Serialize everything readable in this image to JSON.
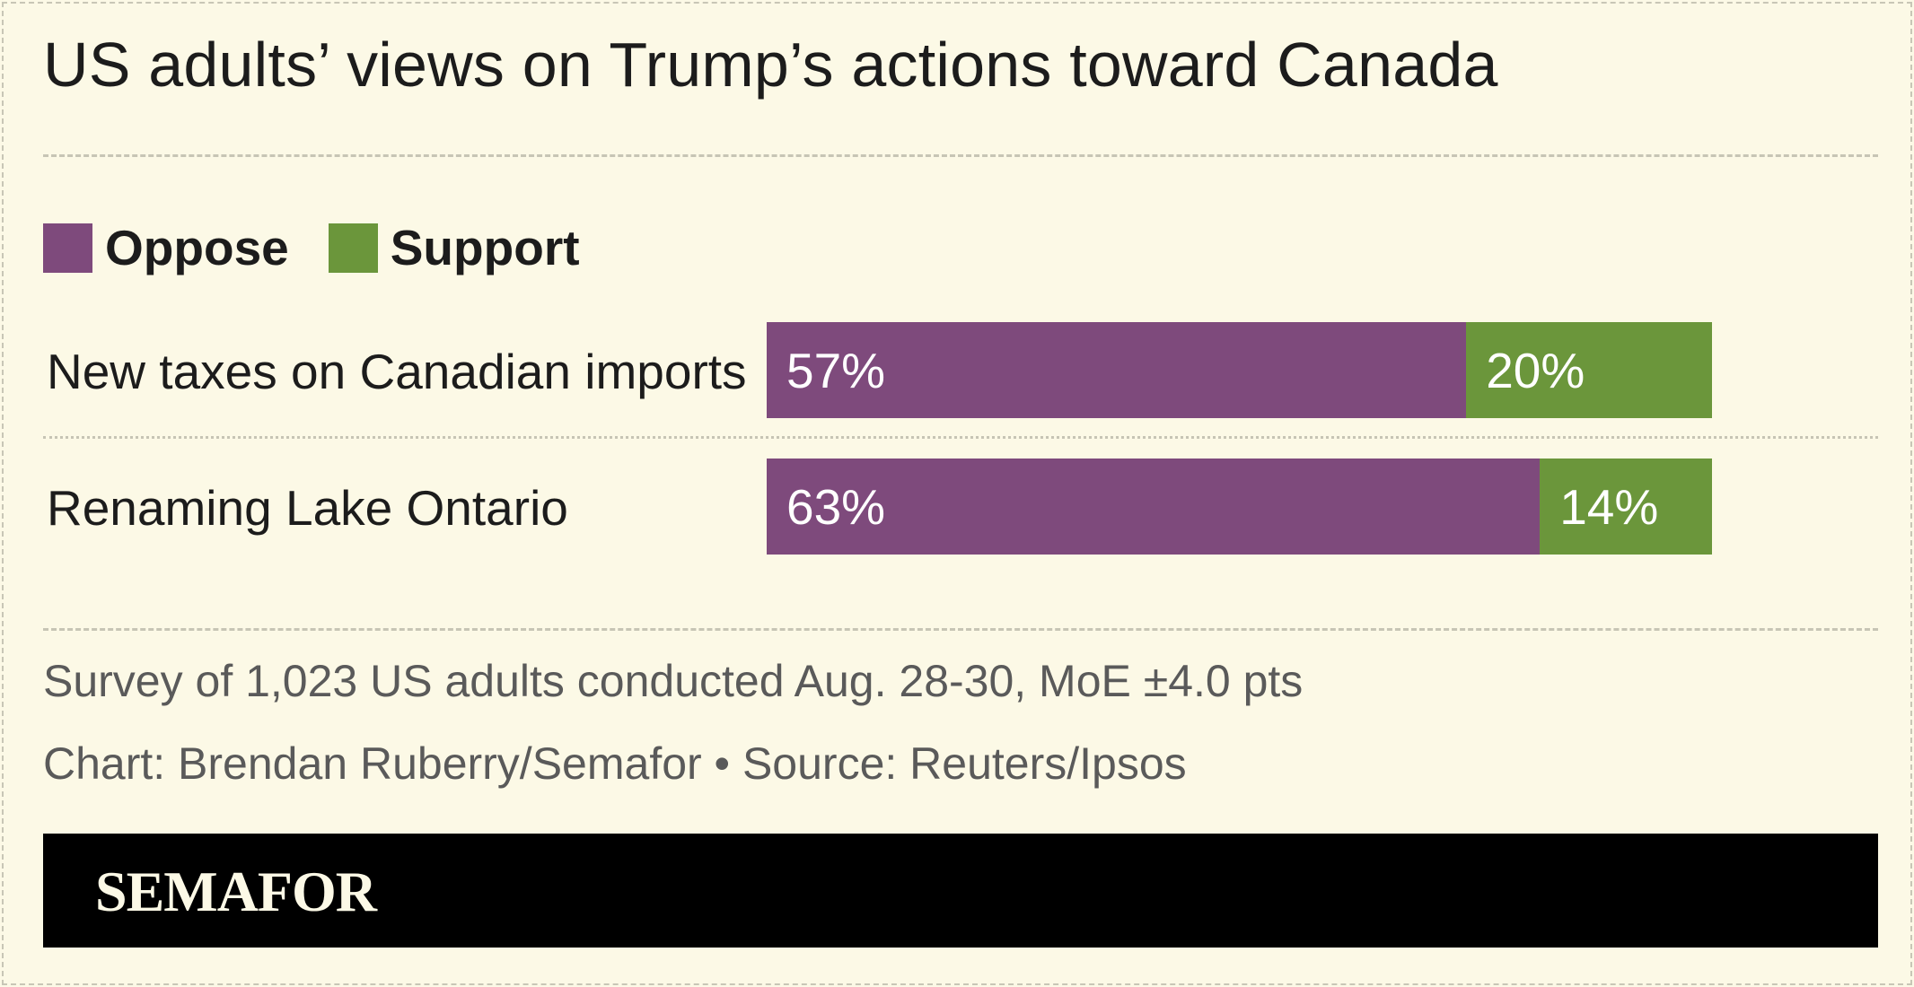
{
  "title": "US adults’ views on Trump’s actions toward Canada",
  "colors": {
    "oppose": "#7e4a7c",
    "support": "#6b963b",
    "background": "#fcf9e6"
  },
  "chart_data": {
    "type": "bar",
    "orientation": "horizontal",
    "stacked": true,
    "categories": [
      "New taxes on Canadian imports",
      "Renaming Lake Ontario"
    ],
    "series": [
      {
        "name": "Oppose",
        "values": [
          57,
          63
        ],
        "labels": [
          "57%",
          "63%"
        ]
      },
      {
        "name": "Support",
        "values": [
          20,
          14
        ],
        "labels": [
          "20%",
          "14%"
        ]
      }
    ],
    "xlim": [
      0,
      100
    ],
    "legend": "top-left",
    "grid": false
  },
  "notes": {
    "survey": "Survey of 1,023 US adults conducted Aug. 28-30, MoE ±4.0 pts",
    "credit": "Chart: Brendan Ruberry/Semafor • Source: Reuters/Ipsos"
  },
  "footer": {
    "logo": "SEMAFOR"
  }
}
